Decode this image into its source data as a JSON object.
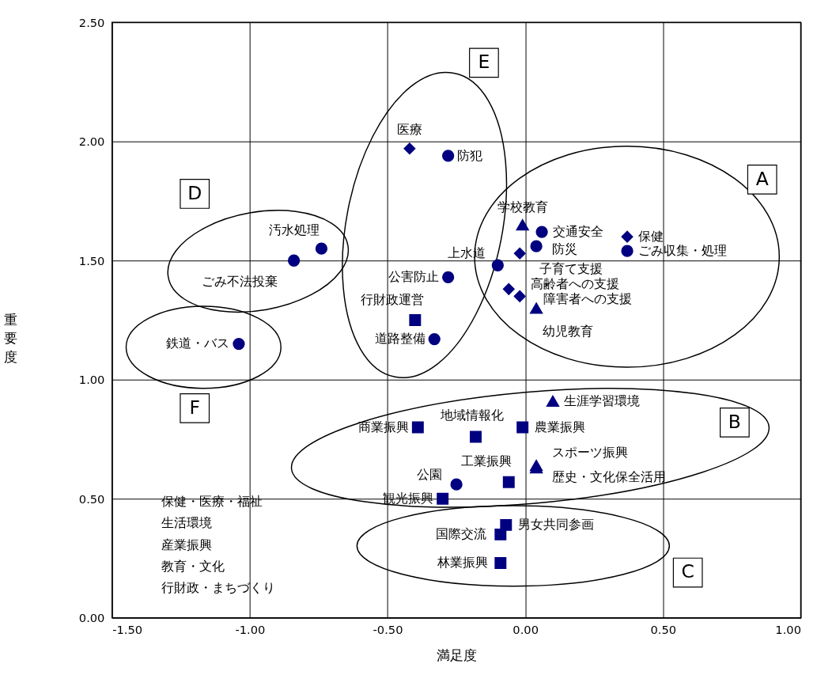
{
  "chart_data": {
    "type": "scatter",
    "xlabel": "満足度",
    "ylabel": "重要度",
    "xlim": [
      -1.5,
      1.0
    ],
    "xticks": [
      {
        "value": -1.5,
        "label": "-1.50"
      },
      {
        "value": -1.0,
        "label": "-1.00"
      },
      {
        "value": -0.5,
        "label": "-0.50"
      },
      {
        "value": 0,
        "label": "0.00"
      },
      {
        "value": 0.5,
        "label": "0.50"
      },
      {
        "value": 1.0,
        "label": "1.00"
      }
    ],
    "ylim": [
      0,
      2.5
    ],
    "yticks": [
      {
        "value": 0,
        "label": "0.00"
      },
      {
        "value": 0.5,
        "label": "0.50"
      },
      {
        "value": 1.0,
        "label": "1.00"
      },
      {
        "value": 1.5,
        "label": "1.50"
      },
      {
        "value": 2.0,
        "label": "2.00"
      },
      {
        "value": 2.5,
        "label": "2.50"
      }
    ],
    "grid": true,
    "series": [
      {
        "color": "#000080",
        "marker": "diamond",
        "x": [
          -0.42,
          0.37,
          -0.02,
          -0.06,
          -0.02
        ],
        "values": [
          1.97,
          1.6,
          1.53,
          1.38,
          1.35
        ],
        "value_labels": [
          "医療",
          "保健",
          "子育て支援",
          "高齢者への支援",
          "障害者への支援"
        ]
      },
      {
        "color": "#000080",
        "marker": "circle",
        "x": [
          -0.28,
          -0.74,
          -0.84,
          -1.04,
          -0.28,
          -0.33,
          -0.1,
          0.06,
          0.04,
          0.37,
          -0.25
        ],
        "values": [
          1.94,
          1.55,
          1.5,
          1.15,
          1.43,
          1.17,
          1.48,
          1.62,
          1.56,
          1.54,
          0.56
        ],
        "value_labels": [
          "防犯",
          "汚水処理",
          "ごみ不法投棄",
          "鉄道・バス",
          "公害防止",
          "道路整備",
          "上水道",
          "交通安全",
          "防災",
          "ごみ収集・処理",
          "公園"
        ]
      },
      {
        "color": "#000080",
        "marker": "square",
        "x": [
          -0.39,
          -0.01,
          -0.06,
          -0.3,
          -0.09
        ],
        "values": [
          0.8,
          0.8,
          0.57,
          0.5,
          0.23
        ],
        "value_labels": [
          "商業振興",
          "農業振興",
          "工業振興",
          "観光振興",
          "林業振興"
        ]
      },
      {
        "color": "#000080",
        "marker": "triangle",
        "x": [
          -0.01,
          0.04,
          0.1,
          0.04,
          0.04
        ],
        "values": [
          1.65,
          1.3,
          0.91,
          0.64,
          0.63
        ],
        "value_labels": [
          "学校教育",
          "幼児教育",
          "生涯学習環境",
          "スポーツ振興",
          "歴史・文化保全活用"
        ]
      },
      {
        "color": "#000080",
        "marker": "square",
        "x": [
          -0.4,
          -0.18,
          -0.09,
          -0.07
        ],
        "values": [
          1.25,
          0.76,
          0.35,
          0.39
        ],
        "value_labels": [
          "行財政運営",
          "地域情報化",
          "国際交流",
          "男女共同参画"
        ]
      }
    ],
    "annotations": [
      {
        "text": "A",
        "x": 0.86,
        "y": 1.84
      },
      {
        "text": "B",
        "x": 0.76,
        "y": 0.82
      },
      {
        "text": "C",
        "x": 0.59,
        "y": 0.19
      },
      {
        "text": "D",
        "x": -1.2,
        "y": 1.78
      },
      {
        "text": "E",
        "x": -0.15,
        "y": 2.33
      },
      {
        "text": "F",
        "x": -1.2,
        "y": 0.88
      },
      "保健・医療・福祉",
      "生活環境",
      "産業振興",
      "教育・文化",
      "行財政・まちづくり"
    ]
  }
}
